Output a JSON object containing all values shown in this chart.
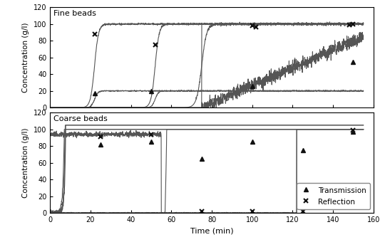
{
  "fine_beads_label": "Fine beads",
  "coarse_beads_label": "Coarse beads",
  "xlabel": "Time (min)",
  "ylabel": "Concentration (g/l)",
  "xlim": [
    0,
    160
  ],
  "ylim": [
    0,
    120
  ],
  "yticks": [
    0,
    20,
    40,
    60,
    80,
    100,
    120
  ],
  "xticks": [
    0,
    20,
    40,
    60,
    80,
    100,
    120,
    140,
    160
  ],
  "line_color": "#555555",
  "marker_color": "#111111",
  "legend_transmission": "Transmission",
  "legend_reflection": "Reflection",
  "figsize": [
    5.4,
    3.4
  ],
  "dpi": 100,
  "fine_trans_markers": [
    [
      22,
      17
    ],
    [
      50,
      20
    ],
    [
      100,
      26
    ],
    [
      150,
      55
    ]
  ],
  "fine_refl_markers": [
    [
      22,
      88
    ],
    [
      52,
      75
    ],
    [
      100,
      98
    ],
    [
      102,
      96
    ],
    [
      150,
      100
    ],
    [
      148,
      99
    ]
  ],
  "coarse_trans_markers": [
    [
      25,
      82
    ],
    [
      50,
      85
    ],
    [
      75,
      65
    ],
    [
      100,
      85
    ],
    [
      125,
      75
    ],
    [
      150,
      97
    ]
  ],
  "coarse_refl_markers": [
    [
      25,
      91
    ],
    [
      50,
      94
    ],
    [
      75,
      2
    ],
    [
      100,
      2
    ],
    [
      125,
      2
    ],
    [
      150,
      99
    ]
  ]
}
